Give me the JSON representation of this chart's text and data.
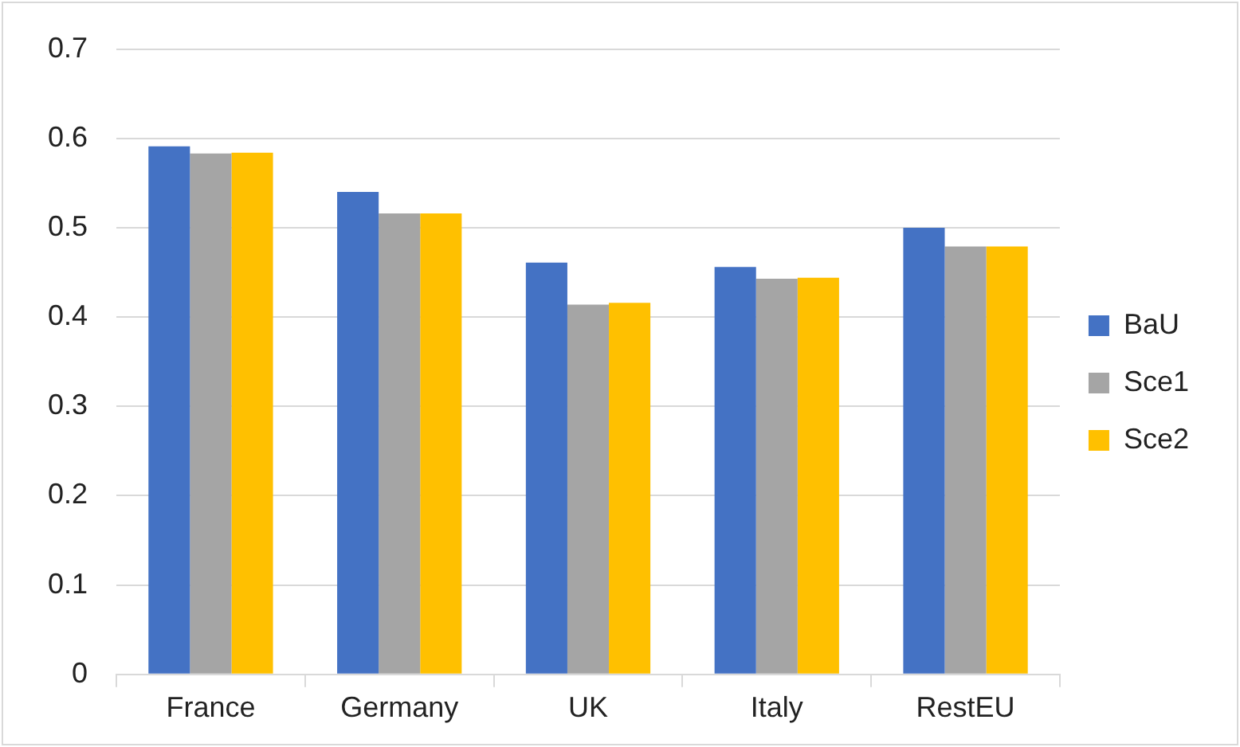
{
  "chart_data": {
    "type": "bar",
    "categories": [
      "France",
      "Germany",
      "UK",
      "Italy",
      "RestEU"
    ],
    "series": [
      {
        "name": "BaU",
        "color": "#4472c4",
        "values": [
          0.591,
          0.54,
          0.461,
          0.456,
          0.5
        ]
      },
      {
        "name": "Sce1",
        "color": "#a5a5a5",
        "values": [
          0.583,
          0.516,
          0.414,
          0.443,
          0.479
        ]
      },
      {
        "name": "Sce2",
        "color": "#ffc000",
        "values": [
          0.584,
          0.516,
          0.416,
          0.444,
          0.479
        ]
      }
    ],
    "ylim": [
      0,
      0.7
    ],
    "yticks": [
      0,
      0.1,
      0.2,
      0.3,
      0.4,
      0.5,
      0.6,
      0.7
    ],
    "grid": "y",
    "legend": "right"
  }
}
